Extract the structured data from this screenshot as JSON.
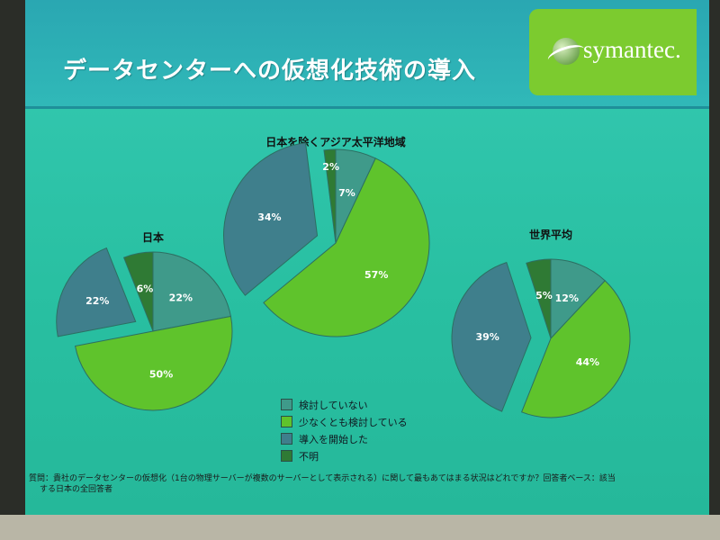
{
  "slide_title": "データセンターへの仮想化技術の導入",
  "logo": {
    "text": "symantec."
  },
  "chart_data": [
    {
      "type": "pie",
      "title": "日本",
      "slices": [
        {
          "label": "検討していない",
          "value": 22,
          "display": "22%",
          "color": "#3f9a8a"
        },
        {
          "label": "少なくとも検討している",
          "value": 50,
          "display": "50%",
          "color": "#5fc32c"
        },
        {
          "label": "導入を開始した",
          "value": 22,
          "display": "22%",
          "color": "#3f7f8c"
        },
        {
          "label": "不明",
          "value": 6,
          "display": "6%",
          "color": "#2f7a34"
        }
      ]
    },
    {
      "type": "pie",
      "title": "日本を除くアジア太平洋地域",
      "slices": [
        {
          "label": "検討していない",
          "value": 7,
          "display": "7%",
          "color": "#3f9a8a"
        },
        {
          "label": "少なくとも検討している",
          "value": 57,
          "display": "57%",
          "color": "#5fc32c"
        },
        {
          "label": "導入を開始した",
          "value": 34,
          "display": "34%",
          "color": "#3f7f8c"
        },
        {
          "label": "不明",
          "value": 2,
          "display": "2%",
          "color": "#2f7a34"
        }
      ]
    },
    {
      "type": "pie",
      "title": "世界平均",
      "slices": [
        {
          "label": "検討していない",
          "value": 12,
          "display": "12%",
          "color": "#3f9a8a"
        },
        {
          "label": "少なくとも検討している",
          "value": 44,
          "display": "44%",
          "color": "#5fc32c"
        },
        {
          "label": "導入を開始した",
          "value": 39,
          "display": "39%",
          "color": "#3f7f8c"
        },
        {
          "label": "不明",
          "value": 5,
          "display": "5%",
          "color": "#2f7a34"
        }
      ]
    }
  ],
  "legend": [
    {
      "label": "検討していない",
      "color": "#3f9a8a"
    },
    {
      "label": "少なくとも検討している",
      "color": "#5fc32c"
    },
    {
      "label": "導入を開始した",
      "color": "#3f7f8c"
    },
    {
      "label": "不明",
      "color": "#2f7a34"
    }
  ],
  "footnote": {
    "line1": "質問：貴社のデータセンターの仮想化（1台の物理サーバーが複数のサーバーとして表示される）に関して最もあてはまる状況はどれですか？回答者ベース：該当",
    "line2": "する日本の全回答者"
  }
}
